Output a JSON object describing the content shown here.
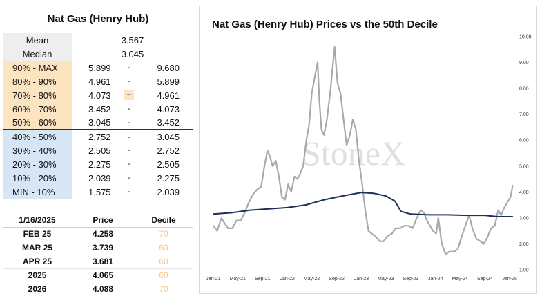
{
  "left_panel": {
    "title": "Nat Gas (Henry Hub)",
    "mean": {
      "label": "Mean",
      "value": "3.567"
    },
    "median": {
      "label": "Median",
      "value": "3.045"
    },
    "deciles_upper": [
      {
        "label": "90% - MAX",
        "low": "5.899",
        "sep": "-",
        "high": "9.680",
        "highlight": false
      },
      {
        "label": "80% - 90%",
        "low": "4.961",
        "sep": "-",
        "high": "5.899",
        "highlight": false
      },
      {
        "label": "70% - 80%",
        "low": "4.073",
        "sep": "~",
        "high": "4.961",
        "highlight": true
      },
      {
        "label": "60% - 70%",
        "low": "3.452",
        "sep": "-",
        "high": "4.073",
        "highlight": false
      },
      {
        "label": "50% - 60%",
        "low": "3.045",
        "sep": "-",
        "high": "3.452",
        "highlight": false
      }
    ],
    "deciles_lower": [
      {
        "label": "40% - 50%",
        "low": "2.752",
        "sep": "-",
        "high": "3.045"
      },
      {
        "label": "30% - 40%",
        "low": "2.505",
        "sep": "-",
        "high": "2.752"
      },
      {
        "label": "20% - 30%",
        "low": "2.275",
        "sep": "-",
        "high": "2.505"
      },
      {
        "label": "10% - 20%",
        "low": "2.039",
        "sep": "-",
        "high": "2.275"
      },
      {
        "label": "MIN - 10%",
        "low": "1.575",
        "sep": "-",
        "high": "2.039"
      }
    ]
  },
  "price_table": {
    "headers": [
      "1/16/2025",
      "Price",
      "Decile"
    ],
    "rows": [
      {
        "contract": "FEB 25",
        "price": "4.258",
        "decile": "70"
      },
      {
        "contract": "MAR 25",
        "price": "3.739",
        "decile": "60"
      },
      {
        "contract": "APR 25",
        "price": "3.681",
        "decile": "60"
      },
      {
        "contract": "2025",
        "price": "4.065",
        "decile": "60"
      },
      {
        "contract": "2026",
        "price": "4.088",
        "decile": "70"
      }
    ]
  },
  "colors": {
    "upper_decile_bg": "#fde4c0",
    "lower_decile_bg": "#d6e6f5",
    "price_line": "#a9a9a9",
    "median_line": "#1d2d5c",
    "decile_text": "#f4c98e"
  },
  "watermark": "StoneX",
  "chart_data": {
    "type": "line",
    "title": "Nat Gas (Henry Hub) Prices vs the 50th Decile",
    "xlabel": "",
    "ylabel": "",
    "ylim": [
      1.0,
      10.0
    ],
    "yticks": [
      "1.00",
      "2.00",
      "3.00",
      "4.00",
      "5.00",
      "6.00",
      "7.00",
      "8.00",
      "9.00",
      "10.00"
    ],
    "y_axis_side": "right",
    "xlim": [
      "2021-01-01",
      "2025-01-31"
    ],
    "xticks": [
      {
        "date": "2021-01-01",
        "label": "Jan-21"
      },
      {
        "date": "2021-05-01",
        "label": "May-21"
      },
      {
        "date": "2021-09-01",
        "label": "Sep-21"
      },
      {
        "date": "2022-01-01",
        "label": "Jan-22"
      },
      {
        "date": "2022-05-01",
        "label": "May-22"
      },
      {
        "date": "2022-09-01",
        "label": "Sep-22"
      },
      {
        "date": "2023-01-01",
        "label": "Jan-23"
      },
      {
        "date": "2023-05-01",
        "label": "May-23"
      },
      {
        "date": "2023-09-01",
        "label": "Sep-23"
      },
      {
        "date": "2024-01-01",
        "label": "Jan-24"
      },
      {
        "date": "2024-05-01",
        "label": "May-24"
      },
      {
        "date": "2024-09-01",
        "label": "Sep-24"
      },
      {
        "date": "2025-01-01",
        "label": "Jan-25"
      }
    ],
    "grid": false,
    "legend": "none",
    "series": [
      {
        "x": [
          "2021-01-01",
          "2021-01-20",
          "2021-02-10",
          "2021-02-25",
          "2021-03-15",
          "2021-04-05",
          "2021-04-25",
          "2021-05-15",
          "2021-06-05",
          "2021-06-25",
          "2021-07-15",
          "2021-08-05",
          "2021-08-25",
          "2021-09-10",
          "2021-09-25",
          "2021-10-06",
          "2021-10-20",
          "2021-11-05",
          "2021-11-20",
          "2021-12-05",
          "2021-12-20",
          "2022-01-05",
          "2022-01-20",
          "2022-02-05",
          "2022-02-20",
          "2022-03-05",
          "2022-03-20",
          "2022-04-05",
          "2022-04-18",
          "2022-05-01",
          "2022-05-15",
          "2022-05-30",
          "2022-06-08",
          "2022-06-18",
          "2022-07-01",
          "2022-07-15",
          "2022-08-01",
          "2022-08-12",
          "2022-08-22",
          "2022-09-05",
          "2022-09-20",
          "2022-10-05",
          "2022-10-20",
          "2022-11-05",
          "2022-11-20",
          "2022-12-05",
          "2022-12-20",
          "2023-01-05",
          "2023-01-20",
          "2023-02-05",
          "2023-02-20",
          "2023-03-10",
          "2023-04-01",
          "2023-04-20",
          "2023-05-10",
          "2023-06-01",
          "2023-06-20",
          "2023-07-10",
          "2023-08-01",
          "2023-08-20",
          "2023-09-10",
          "2023-10-01",
          "2023-10-20",
          "2023-11-05",
          "2023-11-20",
          "2023-12-05",
          "2023-12-20",
          "2024-01-05",
          "2024-01-15",
          "2024-02-01",
          "2024-02-20",
          "2024-03-10",
          "2024-04-01",
          "2024-04-20",
          "2024-05-10",
          "2024-06-01",
          "2024-06-15",
          "2024-07-01",
          "2024-07-20",
          "2024-08-10",
          "2024-08-25",
          "2024-09-10",
          "2024-10-01",
          "2024-10-20",
          "2024-11-05",
          "2024-11-20",
          "2024-12-05",
          "2024-12-20",
          "2025-01-05",
          "2025-01-16"
        ],
        "y": [
          2.7,
          2.5,
          3.0,
          2.8,
          2.6,
          2.6,
          2.9,
          2.9,
          3.2,
          3.6,
          3.9,
          4.1,
          4.2,
          5.0,
          5.6,
          5.4,
          5.0,
          5.2,
          4.6,
          3.8,
          3.7,
          4.3,
          4.0,
          4.6,
          4.5,
          4.7,
          5.0,
          6.0,
          6.6,
          7.8,
          8.4,
          9.0,
          7.5,
          6.4,
          6.2,
          6.8,
          7.9,
          8.8,
          9.6,
          8.2,
          7.8,
          6.8,
          5.8,
          6.2,
          6.8,
          6.4,
          5.2,
          4.3,
          3.3,
          2.5,
          2.4,
          2.3,
          2.1,
          2.1,
          2.3,
          2.4,
          2.6,
          2.6,
          2.7,
          2.7,
          2.6,
          3.0,
          3.3,
          3.2,
          2.9,
          2.7,
          2.5,
          2.4,
          3.0,
          2.0,
          1.6,
          1.7,
          1.7,
          1.8,
          2.3,
          2.8,
          3.1,
          2.6,
          2.2,
          2.1,
          2.0,
          2.2,
          2.6,
          2.7,
          3.3,
          3.1,
          3.4,
          3.6,
          3.8,
          4.26
        ]
      },
      {
        "x": [
          "2021-01-01",
          "2021-04-01",
          "2021-07-01",
          "2021-10-01",
          "2022-01-01",
          "2022-04-01",
          "2022-07-01",
          "2022-10-01",
          "2023-01-01",
          "2023-03-01",
          "2023-05-01",
          "2023-06-15",
          "2023-07-15",
          "2023-09-01",
          "2023-12-01",
          "2024-03-01",
          "2024-06-01",
          "2024-09-01",
          "2024-11-01",
          "2025-01-16"
        ],
        "y": [
          3.15,
          3.2,
          3.3,
          3.35,
          3.4,
          3.5,
          3.7,
          3.85,
          3.98,
          3.95,
          3.85,
          3.65,
          3.25,
          3.15,
          3.12,
          3.12,
          3.1,
          3.1,
          3.05,
          3.05
        ]
      }
    ]
  }
}
